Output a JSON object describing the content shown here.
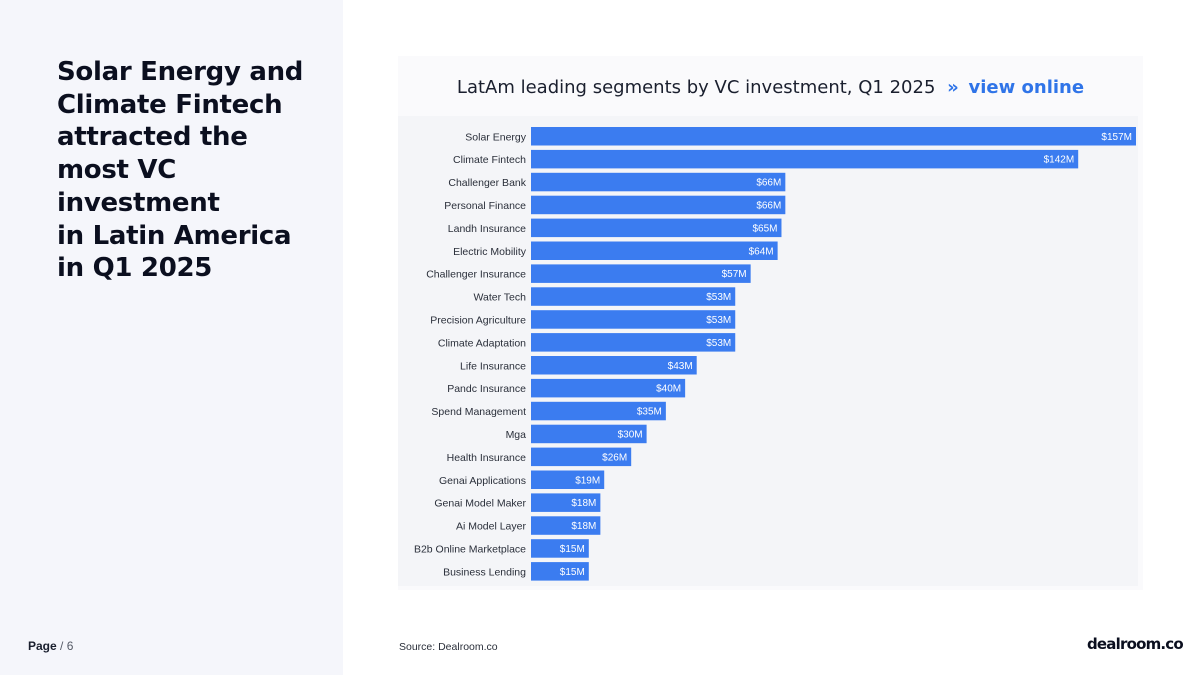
{
  "headline": "Solar Energy and\nClimate Fintech\nattracted the\nmost VC\ninvestment\nin Latin America\nin Q1 2025",
  "page": {
    "label": "Page",
    "separator": " / ",
    "number": "6"
  },
  "chart_title": {
    "text": "LatAm leading segments by VC investment, Q1 2025",
    "arrow": "»",
    "link": "view online"
  },
  "source": "Source:  Dealroom.co",
  "brand": "dealroom.co",
  "colors": {
    "bar": "#3b7cf0",
    "link": "#2f74e8"
  },
  "chart_data": {
    "type": "bar",
    "orientation": "horizontal",
    "title": "LatAm leading segments by VC investment, Q1 2025",
    "xlabel": "",
    "ylabel": "",
    "unit": "$M",
    "xlim": [
      0,
      157
    ],
    "categories": [
      "Solar Energy",
      "Climate Fintech",
      "Challenger Bank",
      "Personal Finance",
      "Landh Insurance",
      "Electric Mobility",
      "Challenger Insurance",
      "Water Tech",
      "Precision Agriculture",
      "Climate Adaptation",
      "Life Insurance",
      "Pandc Insurance",
      "Spend Management",
      "Mga",
      "Health Insurance",
      "Genai Applications",
      "Genai Model Maker",
      "Ai Model Layer",
      "B2b Online Marketplace",
      "Business Lending"
    ],
    "values": [
      157,
      142,
      66,
      66,
      65,
      64,
      57,
      53,
      53,
      53,
      43,
      40,
      35,
      30,
      26,
      19,
      18,
      18,
      15,
      15
    ],
    "labels": [
      "$157M",
      "$142M",
      "$66M",
      "$66M",
      "$65M",
      "$64M",
      "$57M",
      "$53M",
      "$53M",
      "$53M",
      "$43M",
      "$40M",
      "$35M",
      "$30M",
      "$26M",
      "$19M",
      "$18M",
      "$18M",
      "$15M",
      "$15M"
    ]
  }
}
